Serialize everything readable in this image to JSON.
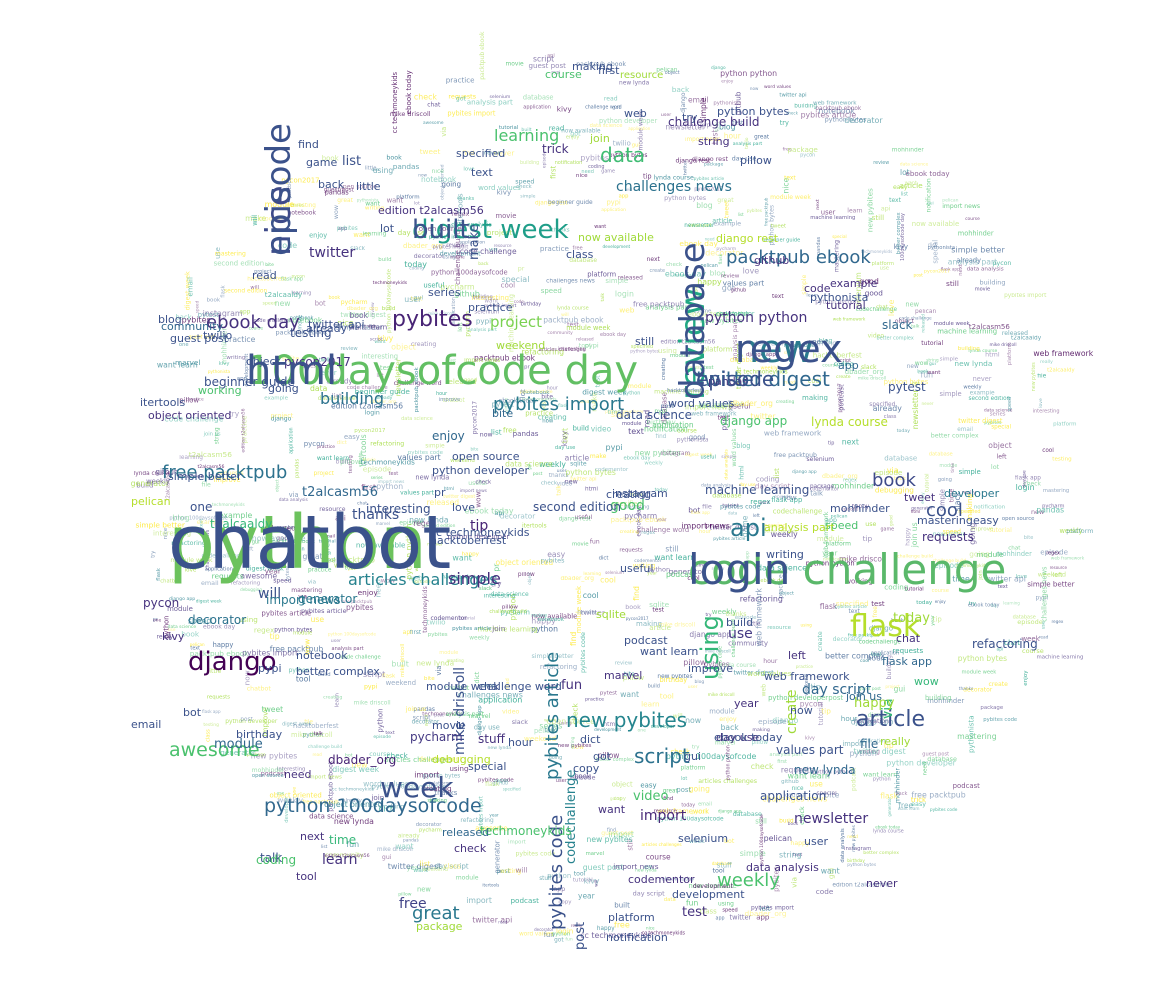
{
  "palette": [
    "#440154",
    "#46327e",
    "#365c8d",
    "#277f8e",
    "#1fa187",
    "#4ac16d",
    "#a0da39",
    "#fde725"
  ],
  "words": [
    {
      "text": "python",
      "c": "#6cc25d"
    },
    {
      "text": "code challenge",
      "c": "#5ab86a"
    },
    {
      "text": "100daysofcode day",
      "c": "#62bf63"
    },
    {
      "text": "new",
      "c": "#2a7b8e"
    },
    {
      "text": "review",
      "c": "#22a884"
    },
    {
      "text": "digest week",
      "c": "#1f9e89"
    },
    {
      "text": "nice",
      "c": "#3e4a89"
    },
    {
      "text": "twitter digest",
      "c": "#31688e"
    },
    {
      "text": "pybites",
      "c": "#482475"
    },
    {
      "text": "new pybites",
      "c": "#25858e"
    },
    {
      "text": "week",
      "c": "#3b528b"
    },
    {
      "text": "django",
      "c": "#440154"
    },
    {
      "text": "flask",
      "c": "#b5de2b"
    },
    {
      "text": "packtpub ebook",
      "c": "#31688e"
    },
    {
      "text": "free packtpub",
      "c": "#2c728e"
    },
    {
      "text": "api",
      "c": "#2a788e"
    },
    {
      "text": "python 100daysofcode",
      "c": "#31688e"
    },
    {
      "text": "pybites article",
      "c": "#2a788e"
    },
    {
      "text": "pybites code",
      "c": "#3b528b"
    },
    {
      "text": "using",
      "c": "#35b779"
    },
    {
      "text": "data",
      "c": "#3fbc73"
    },
    {
      "text": "article",
      "c": "#3b528b"
    },
    {
      "text": "ebook day",
      "c": "#46327e"
    },
    {
      "text": "pybites import",
      "c": "#2a788e"
    },
    {
      "text": "awesome",
      "c": "#4ac16d"
    },
    {
      "text": "script",
      "c": "#2c728e"
    },
    {
      "text": "weekly",
      "c": "#4ac16d"
    },
    {
      "text": "great",
      "c": "#2a788e"
    },
    {
      "text": "book",
      "c": "#3e4a89"
    },
    {
      "text": "cool",
      "c": "#3b528b"
    },
    {
      "text": "twitter",
      "c": "#46327e"
    },
    {
      "text": "learning",
      "c": "#4ac16d"
    },
    {
      "text": "project",
      "c": "#7ad151"
    },
    {
      "text": "python python",
      "c": "#46327e"
    },
    {
      "text": "day script",
      "c": "#31688e"
    },
    {
      "text": "challenges news",
      "c": "#2c728e"
    },
    {
      "text": "articles challenges",
      "c": "#26828e"
    },
    {
      "text": "simple",
      "c": "#472f7d"
    },
    {
      "text": "thanks",
      "c": "#3b528b"
    },
    {
      "text": "building",
      "c": "#2c728e"
    },
    {
      "text": "good",
      "c": "#4ac16d"
    },
    {
      "text": "mike driscoll",
      "c": "#3b528b"
    },
    {
      "text": "create",
      "c": "#a0da39"
    },
    {
      "text": "codechallenge",
      "c": "#26828e"
    },
    {
      "text": "post",
      "c": "#3b528b"
    },
    {
      "text": "newsletter",
      "c": "#46327e"
    },
    {
      "text": "import",
      "c": "#482878"
    },
    {
      "text": "use",
      "c": "#443983"
    },
    {
      "text": "free",
      "c": "#414487"
    },
    {
      "text": "learn",
      "c": "#46327e"
    },
    {
      "text": "time",
      "c": "#35b779"
    },
    {
      "text": "talk",
      "c": "#3b528b"
    },
    {
      "text": "coding",
      "c": "#4ac16d"
    },
    {
      "text": "techmoneykids",
      "c": "#4ac16d"
    },
    {
      "text": "dbader_org",
      "c": "#482475"
    },
    {
      "text": "pycharm",
      "c": "#443983"
    },
    {
      "text": "will",
      "c": "#3b528b"
    },
    {
      "text": "today",
      "c": "#a0da39"
    },
    {
      "text": "via",
      "c": "#35b779"
    },
    {
      "text": "test",
      "c": "#46327e"
    },
    {
      "text": "happy",
      "c": "#a0da39"
    },
    {
      "text": "fun",
      "c": "#46327e"
    },
    {
      "text": "module",
      "c": "#31688e"
    },
    {
      "text": "requests",
      "c": "#46327e"
    },
    {
      "text": "video",
      "c": "#4ac16d"
    },
    {
      "text": "list",
      "c": "#3b528b"
    },
    {
      "text": "make",
      "c": "#3b528b"
    },
    {
      "text": "tip",
      "c": "#482475"
    },
    {
      "text": "t2alcasm56",
      "c": "#31688e"
    },
    {
      "text": "t2alcaaldy",
      "c": "#35b779"
    },
    {
      "text": "data science",
      "c": "#3b528b"
    },
    {
      "text": "lynda course",
      "c": "#b5de2b"
    },
    {
      "text": "decorator",
      "c": "#2c728e"
    },
    {
      "text": "pycon",
      "c": "#46327e"
    },
    {
      "text": "generator",
      "c": "#2a788e"
    },
    {
      "text": "import news",
      "c": "#2a788e"
    },
    {
      "text": "values part",
      "c": "#3b528b"
    },
    {
      "text": "file",
      "c": "#31688e"
    },
    {
      "text": "new lynda",
      "c": "#31688e"
    },
    {
      "text": "application",
      "c": "#3b528b"
    },
    {
      "text": "interesting",
      "c": "#3b528b"
    },
    {
      "text": "second edition",
      "c": "#3b528b"
    },
    {
      "text": "challenge build",
      "c": "#46327e"
    },
    {
      "text": "pytest",
      "c": "#3b528b"
    },
    {
      "text": "django app",
      "c": "#4ac16d"
    },
    {
      "text": "machine learning",
      "c": "#3b528b"
    },
    {
      "text": "mohhinder",
      "c": "#3b528b"
    },
    {
      "text": "tweet",
      "c": "#46327e"
    },
    {
      "text": "developer",
      "c": "#2a788e"
    },
    {
      "text": "speed",
      "c": "#4ac16d"
    },
    {
      "text": "slack",
      "c": "#31688e"
    },
    {
      "text": "pythonista",
      "c": "#3b528b"
    },
    {
      "text": "refactoring",
      "c": "#3b528b"
    },
    {
      "text": "flask app",
      "c": "#31688e"
    },
    {
      "text": "join us",
      "c": "#31688e"
    },
    {
      "text": "wow",
      "c": "#35b779"
    },
    {
      "text": "writing",
      "c": "#3b528b"
    },
    {
      "text": "analysis part",
      "c": "#b5de2b"
    },
    {
      "text": "useful",
      "c": "#3b528b"
    },
    {
      "text": "sqlite",
      "c": "#a0da39"
    },
    {
      "text": "podcast",
      "c": "#3b528b"
    },
    {
      "text": "build",
      "c": "#3b528b"
    },
    {
      "text": "stuff",
      "c": "#46327e"
    },
    {
      "text": "hour",
      "c": "#3b528b"
    },
    {
      "text": "bite",
      "c": "#31688e"
    },
    {
      "text": "love",
      "c": "#3b528b"
    },
    {
      "text": "enjoy",
      "c": "#31688e"
    },
    {
      "text": "word values",
      "c": "#3b528b"
    },
    {
      "text": "pandas",
      "c": "#46327e"
    },
    {
      "text": "weekend",
      "c": "#a0da39"
    },
    {
      "text": "practice",
      "c": "#3b528b"
    },
    {
      "text": "testing",
      "c": "#3b528b"
    },
    {
      "text": "beginner guide",
      "c": "#3b528b"
    },
    {
      "text": "pycon2017",
      "c": "#46327e"
    },
    {
      "text": "twilio",
      "c": "#3b528b"
    },
    {
      "text": "community",
      "c": "#31688e"
    },
    {
      "text": "blog",
      "c": "#3b528b"
    },
    {
      "text": "read",
      "c": "#3b528b"
    },
    {
      "text": "class",
      "c": "#3b528b"
    },
    {
      "text": "trick",
      "c": "#46327e"
    },
    {
      "text": "python bytes",
      "c": "#3b528b"
    },
    {
      "text": "tutorial",
      "c": "#46327e"
    },
    {
      "text": "code",
      "c": "#46327e"
    },
    {
      "text": "app",
      "c": "#31688e"
    },
    {
      "text": "cc techmoneykids",
      "c": "#3b528b"
    },
    {
      "text": "hacktoberfest",
      "c": "#3b528b"
    },
    {
      "text": "pelican",
      "c": "#b5de2b"
    },
    {
      "text": "one",
      "c": "#3b528b"
    },
    {
      "text": "object oriented",
      "c": "#46327e"
    },
    {
      "text": "simple better",
      "c": "#3b528b"
    },
    {
      "text": "course",
      "c": "#4ac16d"
    },
    {
      "text": "resource",
      "c": "#a0da39"
    },
    {
      "text": "text",
      "c": "#3b528b"
    },
    {
      "text": "pillow",
      "c": "#3b528b"
    },
    {
      "text": "string",
      "c": "#46327e"
    },
    {
      "text": "django rest",
      "c": "#b5de2b"
    },
    {
      "text": "edition t2alcasm56",
      "c": "#46327e"
    },
    {
      "text": "github",
      "c": "#46327e"
    },
    {
      "text": "example",
      "c": "#46327e"
    },
    {
      "text": "chat",
      "c": "#46327e"
    },
    {
      "text": "mastering",
      "c": "#3b528b"
    },
    {
      "text": "easy",
      "c": "#3b528b"
    },
    {
      "text": "left",
      "c": "#46327e"
    },
    {
      "text": "day use",
      "c": "#46327e"
    },
    {
      "text": "ebook today",
      "c": "#3b528b"
    },
    {
      "text": "want",
      "c": "#46327e"
    },
    {
      "text": "released",
      "c": "#31688e"
    },
    {
      "text": "selenium",
      "c": "#3b528b"
    },
    {
      "text": "data analysis",
      "c": "#46327e"
    },
    {
      "text": "development",
      "c": "#3b528b"
    },
    {
      "text": "codementor",
      "c": "#46327e"
    },
    {
      "text": "tool",
      "c": "#46327e"
    },
    {
      "text": "next",
      "c": "#46327e"
    },
    {
      "text": "package",
      "c": "#a0da39"
    },
    {
      "text": "notification",
      "c": "#3b528b"
    },
    {
      "text": "platform",
      "c": "#3b528b"
    },
    {
      "text": "check",
      "c": "#46327e"
    },
    {
      "text": "need",
      "c": "#46327e"
    },
    {
      "text": "bot",
      "c": "#3b528b"
    },
    {
      "text": "email",
      "c": "#3b528b"
    },
    {
      "text": "birthday",
      "c": "#3b528b"
    },
    {
      "text": "notebook",
      "c": "#3b528b"
    },
    {
      "text": "better complex",
      "c": "#3b528b"
    },
    {
      "text": "module week",
      "c": "#3b528b"
    },
    {
      "text": "challenge word",
      "c": "#3b528b"
    },
    {
      "text": "want learn",
      "c": "#3b528b"
    },
    {
      "text": "improve",
      "c": "#3b528b"
    },
    {
      "text": "marvel",
      "c": "#46327e"
    },
    {
      "text": "year",
      "c": "#46327e"
    },
    {
      "text": "web framework",
      "c": "#3b528b"
    },
    {
      "text": "movie",
      "c": "#3b528b"
    },
    {
      "text": "debugging",
      "c": "#b5de2b"
    },
    {
      "text": "special",
      "c": "#3b528b"
    },
    {
      "text": "dict",
      "c": "#3b528b"
    },
    {
      "text": "copy",
      "c": "#3b528b"
    },
    {
      "text": "got",
      "c": "#3b528b"
    },
    {
      "text": "gui",
      "c": "#3b528b"
    },
    {
      "text": "user",
      "c": "#3b528b"
    },
    {
      "text": "pypi",
      "c": "#3b528b"
    },
    {
      "text": "kivy",
      "c": "#46327e"
    },
    {
      "text": "twitter api",
      "c": "#3b528b"
    },
    {
      "text": "python developer",
      "c": "#3b528b"
    },
    {
      "text": "open source",
      "c": "#3b528b"
    },
    {
      "text": "instagram",
      "c": "#3b528b"
    },
    {
      "text": "creating",
      "c": "#3b528b"
    },
    {
      "text": "never",
      "c": "#46327e"
    },
    {
      "text": "really",
      "c": "#a0da39"
    },
    {
      "text": "now",
      "c": "#3b528b"
    },
    {
      "text": "now available",
      "c": "#a0da39"
    },
    {
      "text": "pr",
      "c": "#3b528b"
    },
    {
      "text": "still",
      "c": "#3b528b"
    },
    {
      "text": "series",
      "c": "#3b528b"
    },
    {
      "text": "making",
      "c": "#3b528b"
    },
    {
      "text": "first",
      "c": "#3b528b"
    },
    {
      "text": "try",
      "c": "#3b528b"
    },
    {
      "text": "join",
      "c": "#a0da39"
    },
    {
      "text": "web",
      "c": "#3b528b"
    },
    {
      "text": "lot",
      "c": "#3b528b"
    },
    {
      "text": "guest post",
      "c": "#3b528b"
    },
    {
      "text": "game",
      "c": "#3b528b"
    },
    {
      "text": "find",
      "c": "#3b528b"
    },
    {
      "text": "specified",
      "c": "#3b528b"
    },
    {
      "text": "back",
      "c": "#3b528b"
    },
    {
      "text": "little",
      "c": "#3b528b"
    },
    {
      "text": "already",
      "c": "#3b528b"
    },
    {
      "text": "object",
      "c": "#3b528b"
    },
    {
      "text": "going",
      "c": "#3b528b"
    },
    {
      "text": "working",
      "c": "#4ac16d"
    },
    {
      "text": "itertools",
      "c": "#3b528b"
    },
    {
      "text": "chatbot",
      "c": "#3b528b"
    },
    {
      "text": "login",
      "c": "#3b528b"
    },
    {
      "text": "html",
      "c": "#3b528b"
    },
    {
      "text": "regex",
      "c": "#3b528b"
    },
    {
      "text": "database",
      "c": "#3b528b"
    },
    {
      "text": "built",
      "c": "#3b528b"
    },
    {
      "text": "episode",
      "c": "#3b528b"
    },
    {
      "text": "episode",
      "c": "#3b528b"
    }
  ]
}
